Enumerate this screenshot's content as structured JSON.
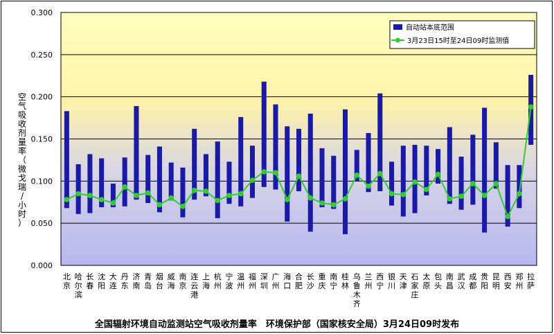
{
  "chart_data": {
    "type": "bar",
    "title": "全国辐射环境自动监测站空气吸收剂量率　环境保护部（国家核安全局）3月24日09时发布",
    "ylabel": "空气吸收剂量率（微戈瑞/小时）",
    "ylim": [
      0,
      0.3
    ],
    "yticks": [
      "0.000",
      "0.050",
      "0.100",
      "0.150",
      "0.200",
      "0.250",
      "0.300"
    ],
    "categories": [
      "北京",
      "哈尔滨",
      "长春",
      "沈阳",
      "大连",
      "丹东",
      "济南",
      "青岛",
      "烟台",
      "威海",
      "南京",
      "连云港",
      "上海",
      "杭州",
      "宁波",
      "温州",
      "福州",
      "深圳",
      "广州",
      "海口",
      "合肥",
      "长沙",
      "重庆",
      "南宁",
      "桂林",
      "乌鲁木齐",
      "兰州",
      "西宁",
      "银川",
      "天津",
      "石家庄",
      "太原",
      "包头",
      "南昌",
      "武汉",
      "成都",
      "贵阳",
      "昆明",
      "西安",
      "郑州",
      "拉萨"
    ],
    "series": [
      {
        "name": "自动站本底范围",
        "type": "range-bar",
        "color": "#1a1aa6",
        "low": [
          0.068,
          0.061,
          0.062,
          0.069,
          0.069,
          0.07,
          0.078,
          0.074,
          0.063,
          0.077,
          0.057,
          0.078,
          0.082,
          0.056,
          0.073,
          0.07,
          0.08,
          0.093,
          0.09,
          0.052,
          0.088,
          0.04,
          0.069,
          0.067,
          0.037,
          0.1,
          0.087,
          0.088,
          0.071,
          0.058,
          0.062,
          0.083,
          0.097,
          0.073,
          0.066,
          0.072,
          0.039,
          0.091,
          0.046,
          0.068,
          0.143
        ],
        "high": [
          0.183,
          0.12,
          0.132,
          0.127,
          0.097,
          0.128,
          0.189,
          0.131,
          0.141,
          0.122,
          0.116,
          0.162,
          0.132,
          0.147,
          0.123,
          0.176,
          0.142,
          0.218,
          0.191,
          0.165,
          0.162,
          0.18,
          0.139,
          0.13,
          0.185,
          0.137,
          0.157,
          0.204,
          0.123,
          0.142,
          0.143,
          0.142,
          0.138,
          0.164,
          0.129,
          0.155,
          0.187,
          0.146,
          0.119,
          0.119,
          0.226
        ]
      },
      {
        "name": "3月23日15时至24日09时监测值",
        "type": "line",
        "color": "#33cc33",
        "values": [
          0.078,
          0.085,
          0.083,
          0.078,
          0.074,
          0.093,
          0.083,
          0.086,
          0.072,
          0.08,
          0.07,
          0.089,
          0.088,
          0.077,
          0.083,
          0.085,
          0.101,
          0.111,
          0.11,
          0.078,
          0.106,
          0.08,
          0.074,
          0.072,
          0.079,
          0.107,
          0.094,
          0.109,
          0.085,
          0.084,
          0.099,
          0.09,
          0.108,
          0.079,
          0.082,
          0.097,
          0.083,
          0.097,
          0.058,
          0.085,
          0.188
        ]
      }
    ],
    "legend": "top-right",
    "grid": true
  }
}
